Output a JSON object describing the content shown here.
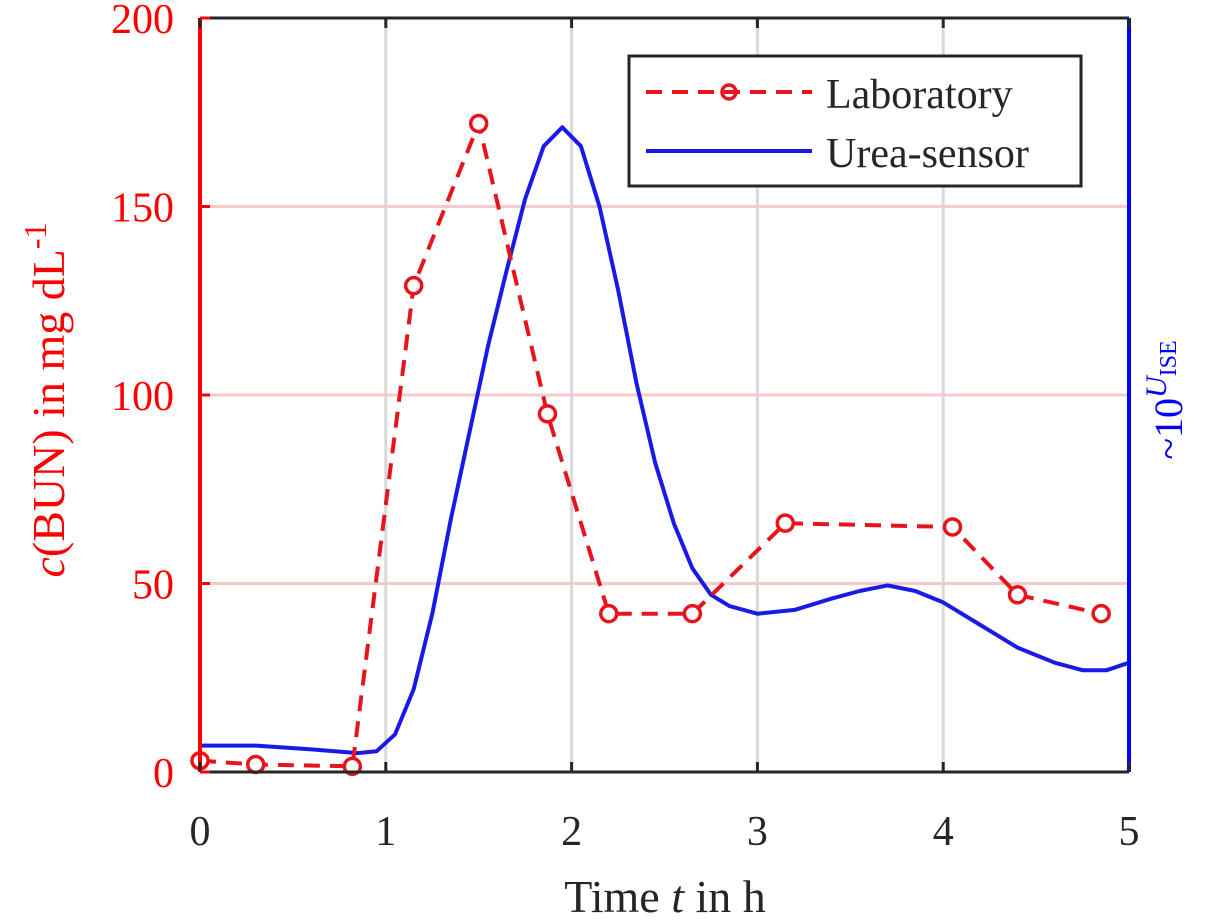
{
  "chart_data": {
    "type": "line",
    "xlabel_prefix": "Time ",
    "xlabel_var": "t",
    "xlabel_suffix": " in h",
    "ylabel_left_var": "c",
    "ylabel_left_text": "(BUN) in mg dL",
    "ylabel_left_sup": "-1",
    "ylabel_right_prefix": "~10",
    "ylabel_right_sup_var": "U",
    "ylabel_right_sub": "ISE",
    "xlim": [
      0,
      5
    ],
    "ylim": [
      0,
      200
    ],
    "x_ticks": [
      "0",
      "1",
      "2",
      "3",
      "4",
      "5"
    ],
    "y_ticks": [
      "0",
      "50",
      "100",
      "150",
      "200"
    ],
    "grid_x": true,
    "grid_y": true,
    "legend_position": "top-right",
    "colors": {
      "laboratory": "#e8141c",
      "sensor": "#1a1ae6",
      "grid_x": "#d9d9d9",
      "grid_y": "#f6caca",
      "left_axis": "#ff0000",
      "right_axis": "#0000ff",
      "frame": "#262626"
    },
    "series": [
      {
        "name": "Laboratory",
        "style": "dashed-circle",
        "points": [
          [
            0.0,
            3
          ],
          [
            0.3,
            2
          ],
          [
            0.82,
            1.5
          ],
          [
            1.15,
            129
          ],
          [
            1.5,
            172
          ],
          [
            1.87,
            95
          ],
          [
            2.2,
            42
          ],
          [
            2.65,
            42
          ],
          [
            3.15,
            66
          ],
          [
            4.05,
            65
          ],
          [
            4.4,
            47
          ],
          [
            4.85,
            42
          ]
        ]
      },
      {
        "name": "Urea-sensor",
        "style": "solid",
        "points": [
          [
            0.0,
            7
          ],
          [
            0.3,
            7
          ],
          [
            0.6,
            6
          ],
          [
            0.85,
            5
          ],
          [
            0.95,
            5.5
          ],
          [
            1.05,
            10
          ],
          [
            1.15,
            22
          ],
          [
            1.25,
            42
          ],
          [
            1.35,
            67
          ],
          [
            1.45,
            90
          ],
          [
            1.55,
            113
          ],
          [
            1.65,
            133
          ],
          [
            1.75,
            152
          ],
          [
            1.85,
            166
          ],
          [
            1.95,
            171
          ],
          [
            2.05,
            166
          ],
          [
            2.15,
            150
          ],
          [
            2.25,
            128
          ],
          [
            2.35,
            103
          ],
          [
            2.45,
            82
          ],
          [
            2.55,
            66
          ],
          [
            2.65,
            54
          ],
          [
            2.75,
            47
          ],
          [
            2.85,
            44
          ],
          [
            3.0,
            42
          ],
          [
            3.2,
            43
          ],
          [
            3.4,
            46
          ],
          [
            3.55,
            48
          ],
          [
            3.7,
            49.5
          ],
          [
            3.85,
            48
          ],
          [
            4.0,
            45
          ],
          [
            4.2,
            39
          ],
          [
            4.4,
            33
          ],
          [
            4.6,
            29
          ],
          [
            4.75,
            27
          ],
          [
            4.88,
            27
          ],
          [
            5.0,
            29
          ]
        ]
      }
    ]
  }
}
